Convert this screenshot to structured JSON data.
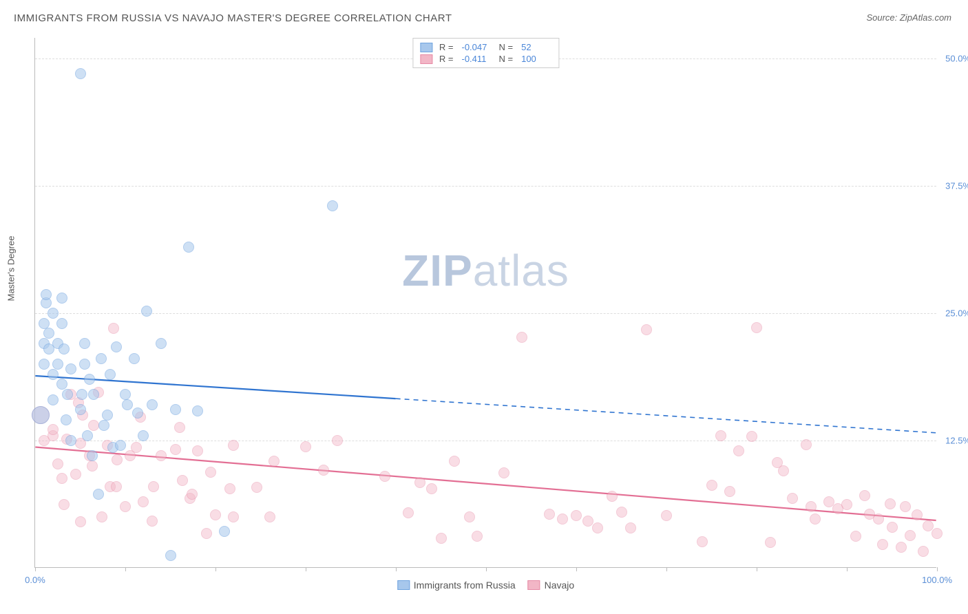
{
  "title": "IMMIGRANTS FROM RUSSIA VS NAVAJO MASTER'S DEGREE CORRELATION CHART",
  "source": "Source: ZipAtlas.com",
  "ylabel": "Master's Degree",
  "watermark_bold": "ZIP",
  "watermark_rest": "atlas",
  "chart": {
    "type": "scatter",
    "xlim": [
      0,
      100
    ],
    "ylim": [
      0,
      52
    ],
    "yticks": [
      {
        "v": 12.5,
        "label": "12.5%"
      },
      {
        "v": 25.0,
        "label": "25.0%"
      },
      {
        "v": 37.5,
        "label": "37.5%"
      },
      {
        "v": 50.0,
        "label": "50.0%"
      }
    ],
    "xticks": [
      0,
      10,
      20,
      30,
      40,
      50,
      60,
      70,
      80,
      90,
      100
    ],
    "xtick_labels": {
      "0": "0.0%",
      "100": "100.0%"
    },
    "background_color": "#ffffff",
    "grid_color": "#dddddd",
    "point_radius": 8,
    "point_radius_large": 13,
    "series_a": {
      "name": "Immigrants from Russia",
      "fill": "#a7c7ec",
      "fill_opacity": 0.55,
      "stroke": "#6fa3df",
      "trend_color": "#2f74d0",
      "trend": {
        "y_at_x0": 18.8,
        "y_at_x100": 13.2,
        "solid_until_x": 40
      },
      "R": "-0.047",
      "N": "52",
      "points": [
        [
          0.6,
          15.0,
          "L"
        ],
        [
          1,
          20
        ],
        [
          1,
          22
        ],
        [
          1,
          24
        ],
        [
          1.2,
          26
        ],
        [
          1.2,
          26.8
        ],
        [
          1.5,
          23
        ],
        [
          1.5,
          21.5
        ],
        [
          2,
          19
        ],
        [
          2,
          16.5
        ],
        [
          2,
          25
        ],
        [
          2.5,
          22
        ],
        [
          2.5,
          20
        ],
        [
          3,
          26.5
        ],
        [
          3,
          24
        ],
        [
          3,
          18
        ],
        [
          3.2,
          21.5
        ],
        [
          3.4,
          14.5
        ],
        [
          3.6,
          17
        ],
        [
          4,
          12.5
        ],
        [
          4,
          19.5
        ],
        [
          5,
          48.5
        ],
        [
          5,
          15.5
        ],
        [
          5.2,
          17
        ],
        [
          5.5,
          22
        ],
        [
          5.5,
          20
        ],
        [
          5.8,
          13
        ],
        [
          6,
          18.5
        ],
        [
          6.3,
          11
        ],
        [
          6.5,
          17
        ],
        [
          7,
          7.2
        ],
        [
          7.3,
          20.5
        ],
        [
          7.6,
          14
        ],
        [
          8,
          15
        ],
        [
          8.3,
          19
        ],
        [
          8.6,
          11.8
        ],
        [
          9,
          21.7
        ],
        [
          9.5,
          12
        ],
        [
          10,
          17
        ],
        [
          10.2,
          16
        ],
        [
          11,
          20.5
        ],
        [
          11.4,
          15.2
        ],
        [
          12,
          13
        ],
        [
          12.4,
          25.2
        ],
        [
          13,
          16
        ],
        [
          14,
          22
        ],
        [
          15,
          1.2
        ],
        [
          15.6,
          15.5
        ],
        [
          17,
          31.5
        ],
        [
          18,
          15.4
        ],
        [
          21,
          3.6
        ],
        [
          33,
          35.5
        ]
      ]
    },
    "series_b": {
      "name": "Navajo",
      "fill": "#f2b6c6",
      "fill_opacity": 0.45,
      "stroke": "#e68aa5",
      "trend_color": "#e36f94",
      "trend": {
        "y_at_x0": 11.8,
        "y_at_x100": 4.6,
        "solid_until_x": 100
      },
      "R": "-0.411",
      "N": "100",
      "points": [
        [
          0.6,
          15.0,
          "L"
        ],
        [
          1,
          12.5
        ],
        [
          2,
          13
        ],
        [
          2,
          13.6
        ],
        [
          2.5,
          10.2
        ],
        [
          3,
          8.8
        ],
        [
          3.2,
          6.2
        ],
        [
          3.5,
          12.6
        ],
        [
          4,
          17
        ],
        [
          4.5,
          9.2
        ],
        [
          4.8,
          16.2
        ],
        [
          5,
          4.5
        ],
        [
          5,
          12.2
        ],
        [
          5.3,
          15
        ],
        [
          6,
          11
        ],
        [
          6.3,
          10
        ],
        [
          6.5,
          14
        ],
        [
          7,
          17.2
        ],
        [
          7.4,
          5
        ],
        [
          8,
          12
        ],
        [
          8.3,
          8
        ],
        [
          8.7,
          23.5
        ],
        [
          9,
          8
        ],
        [
          9.1,
          10.6
        ],
        [
          10,
          6
        ],
        [
          10.5,
          11
        ],
        [
          11.2,
          11.8
        ],
        [
          11.7,
          14.8
        ],
        [
          12,
          6.5
        ],
        [
          13,
          4.6
        ],
        [
          13.1,
          8
        ],
        [
          14,
          11
        ],
        [
          15.6,
          11.6
        ],
        [
          16,
          13.8
        ],
        [
          16.3,
          8.6
        ],
        [
          17.2,
          6.8
        ],
        [
          17.4,
          7.2
        ],
        [
          18,
          11.5
        ],
        [
          19,
          3.4
        ],
        [
          19.5,
          9.4
        ],
        [
          20,
          5.2
        ],
        [
          21.6,
          7.8
        ],
        [
          22,
          12
        ],
        [
          22,
          5
        ],
        [
          24.6,
          7.9
        ],
        [
          26,
          5
        ],
        [
          26.5,
          10.5
        ],
        [
          30,
          11.9
        ],
        [
          32,
          9.6
        ],
        [
          33.5,
          12.5
        ],
        [
          38.8,
          9
        ],
        [
          41.4,
          5.4
        ],
        [
          42.7,
          8.4
        ],
        [
          44,
          7.8
        ],
        [
          45,
          2.9
        ],
        [
          46.5,
          10.5
        ],
        [
          48.2,
          5
        ],
        [
          49,
          3.1
        ],
        [
          52,
          9.3
        ],
        [
          54,
          22.6
        ],
        [
          57,
          5.3
        ],
        [
          58.5,
          4.8
        ],
        [
          60,
          5.1
        ],
        [
          61.3,
          4.6
        ],
        [
          62.4,
          3.9
        ],
        [
          64,
          7
        ],
        [
          65,
          5.5
        ],
        [
          66,
          3.9
        ],
        [
          67.8,
          23.4
        ],
        [
          70,
          5.1
        ],
        [
          74,
          2.6
        ],
        [
          75,
          8.1
        ],
        [
          76,
          13
        ],
        [
          77,
          7.5
        ],
        [
          78,
          11.5
        ],
        [
          79.5,
          12.9
        ],
        [
          80,
          23.6
        ],
        [
          81.5,
          2.5
        ],
        [
          82.3,
          10.3
        ],
        [
          83,
          9.5
        ],
        [
          84,
          6.8
        ],
        [
          85.5,
          12.1
        ],
        [
          86,
          6
        ],
        [
          86.5,
          4.8
        ],
        [
          88,
          6.5
        ],
        [
          89,
          5.8
        ],
        [
          90,
          6.2
        ],
        [
          91,
          3.1
        ],
        [
          92,
          7.1
        ],
        [
          92.5,
          5.3
        ],
        [
          93.5,
          4.8
        ],
        [
          94,
          2.3
        ],
        [
          94.8,
          6.3
        ],
        [
          95,
          4.0
        ],
        [
          96,
          2.0
        ],
        [
          96.5,
          6.0
        ],
        [
          97,
          3.2
        ],
        [
          97.8,
          5.2
        ],
        [
          98.5,
          1.6
        ],
        [
          99,
          4.1
        ],
        [
          100,
          3.4
        ]
      ]
    }
  }
}
